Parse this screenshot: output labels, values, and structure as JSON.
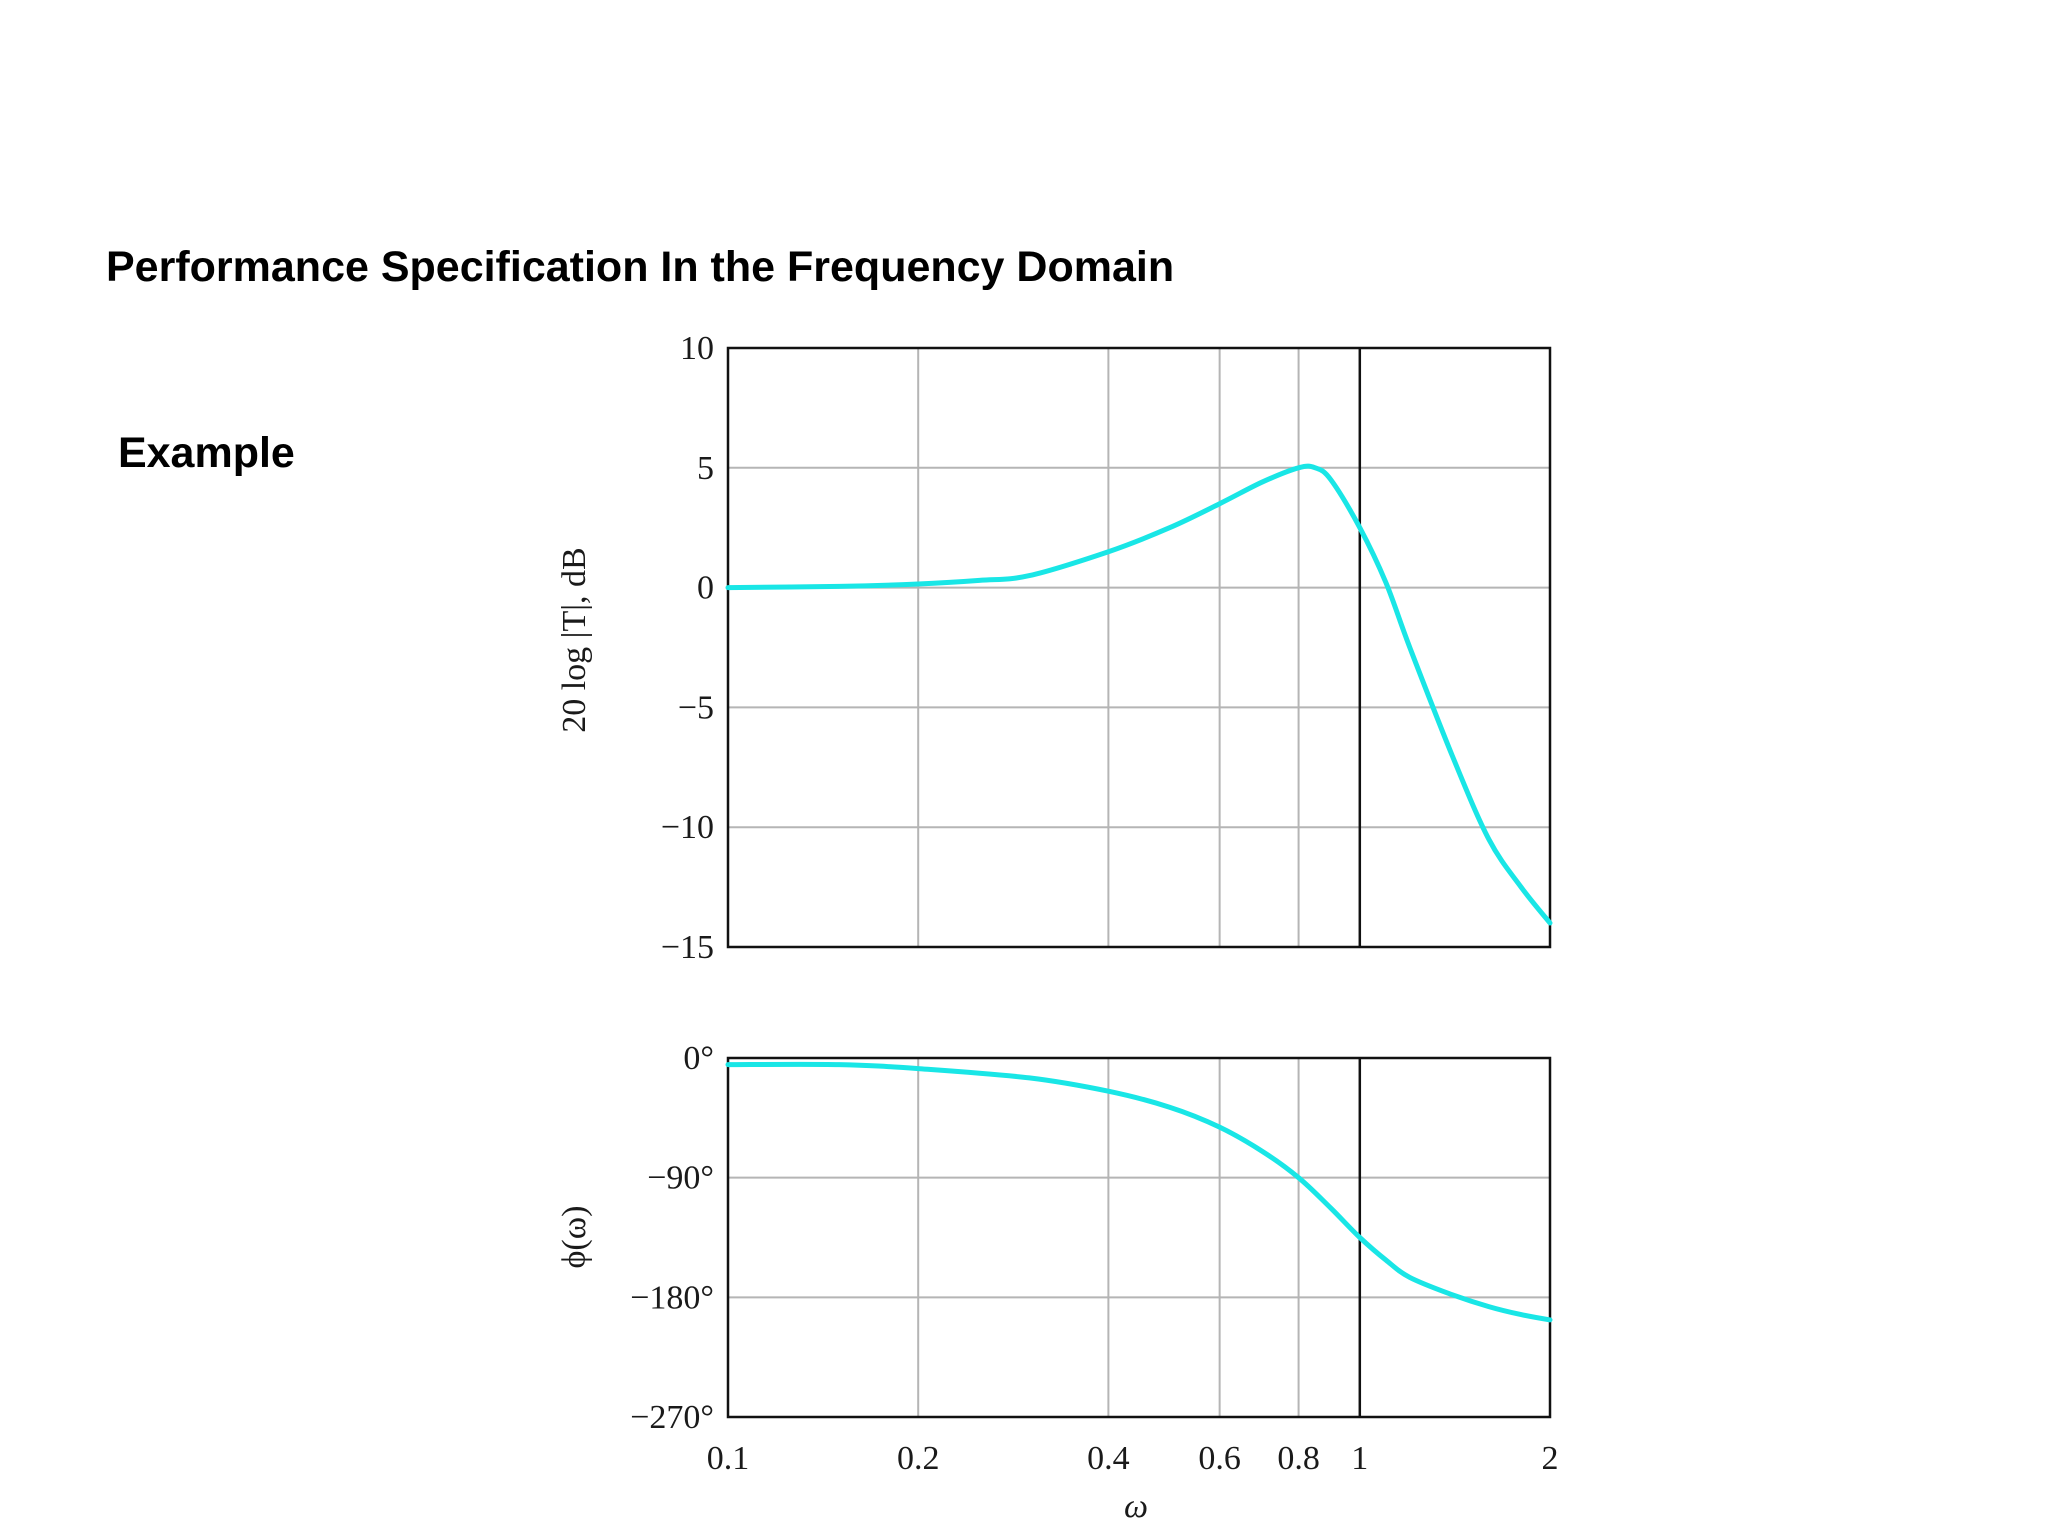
{
  "title": {
    "line1": "Performance Specification In the Frequency Domain",
    "line2": " Example"
  },
  "chart_data": [
    {
      "type": "line",
      "ylabel": "20 log |T|, dB",
      "xscale": "log",
      "xlim": [
        0.1,
        2
      ],
      "ylim": [
        -15,
        10
      ],
      "grid": true,
      "x_ticks": [
        0.1,
        0.2,
        0.4,
        0.6,
        0.8,
        1,
        2
      ],
      "y_ticks": [
        10,
        5,
        0,
        -5,
        -10,
        -15
      ],
      "y_tick_labels": [
        "10",
        "5",
        "0",
        "−5",
        "−10",
        "−15"
      ],
      "marker_x": 1,
      "series": [
        {
          "color": "#19e6e6",
          "x": [
            0.1,
            0.15,
            0.2,
            0.25,
            0.3,
            0.4,
            0.5,
            0.6,
            0.7,
            0.8,
            0.85,
            0.9,
            1.0,
            1.1,
            1.2,
            1.4,
            1.6,
            1.8,
            2.0
          ],
          "y": [
            0.0,
            0.05,
            0.15,
            0.3,
            0.5,
            1.5,
            2.5,
            3.5,
            4.4,
            5.0,
            5.0,
            4.5,
            2.5,
            0.2,
            -2.5,
            -7.0,
            -10.5,
            -12.5,
            -14.0
          ]
        }
      ]
    },
    {
      "type": "line",
      "ylabel": "ϕ(ω)",
      "xlabel": "ω",
      "xscale": "log",
      "xlim": [
        0.1,
        2
      ],
      "ylim": [
        -270,
        0
      ],
      "grid": true,
      "x_ticks": [
        0.1,
        0.2,
        0.4,
        0.6,
        0.8,
        1,
        2
      ],
      "x_tick_labels": [
        "0.1",
        "0.2",
        "0.4",
        "0.6",
        "0.8",
        "1",
        "2"
      ],
      "y_ticks": [
        0,
        -90,
        -180,
        -270
      ],
      "y_tick_labels": [
        "0°",
        "−90°",
        "−180°",
        "−270°"
      ],
      "marker_x": 1,
      "series": [
        {
          "color": "#19e6e6",
          "x": [
            0.1,
            0.15,
            0.2,
            0.3,
            0.4,
            0.5,
            0.6,
            0.7,
            0.8,
            0.9,
            1.0,
            1.1,
            1.2,
            1.4,
            1.6,
            1.8,
            2.0
          ],
          "y": [
            -5,
            -5,
            -8,
            -15,
            -25,
            -37,
            -52,
            -70,
            -90,
            -113,
            -135,
            -152,
            -165,
            -178,
            -187,
            -193,
            -197
          ]
        }
      ]
    }
  ]
}
